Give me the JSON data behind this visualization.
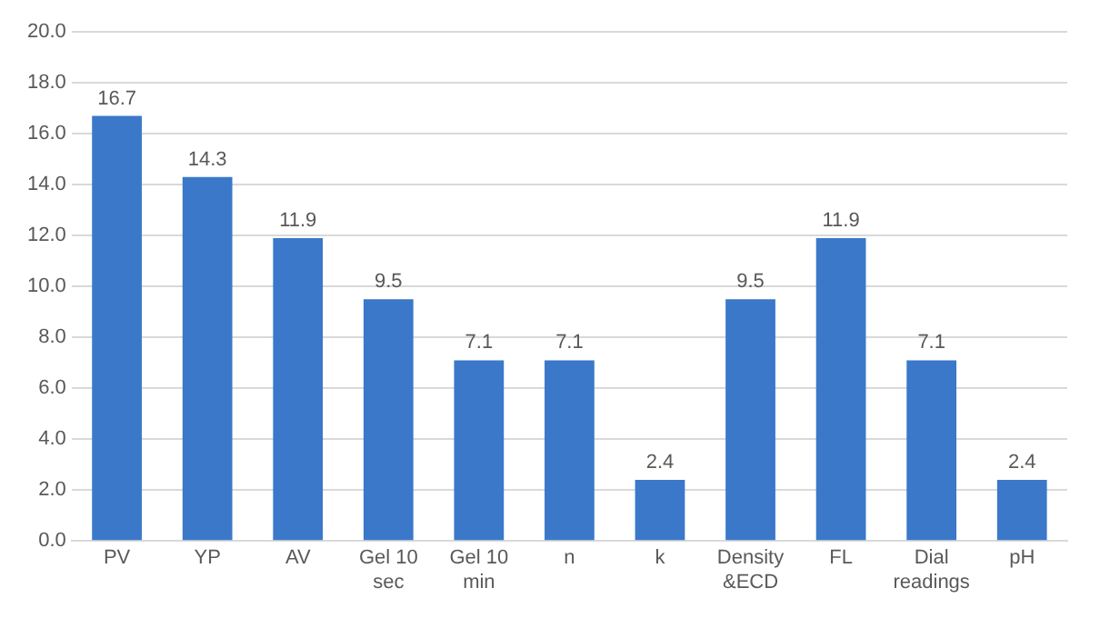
{
  "chart_data": {
    "type": "bar",
    "categories": [
      "PV",
      "YP",
      "AV",
      "Gel 10 sec",
      "Gel 10 min",
      "n",
      "k",
      "Density &ECD",
      "FL",
      "Dial readings",
      "pH"
    ],
    "values": [
      16.7,
      14.3,
      11.9,
      9.5,
      7.1,
      7.1,
      2.4,
      9.5,
      11.9,
      7.1,
      2.4
    ],
    "color": "#3b78c9",
    "ylim": [
      0,
      20
    ],
    "yticks": [
      {
        "value": 0,
        "label": "0.0"
      },
      {
        "value": 2,
        "label": "2.0"
      },
      {
        "value": 4,
        "label": "4.0"
      },
      {
        "value": 6,
        "label": "6.0"
      },
      {
        "value": 8,
        "label": "8.0"
      },
      {
        "value": 10,
        "label": "10.0"
      },
      {
        "value": 12,
        "label": "12.0"
      },
      {
        "value": 14,
        "label": "14.0"
      },
      {
        "value": 16,
        "label": "16.0"
      },
      {
        "value": 18,
        "label": "18.0"
      },
      {
        "value": 20,
        "label": "20.0"
      }
    ],
    "grid": "y",
    "data_labels": true,
    "legend": false
  }
}
